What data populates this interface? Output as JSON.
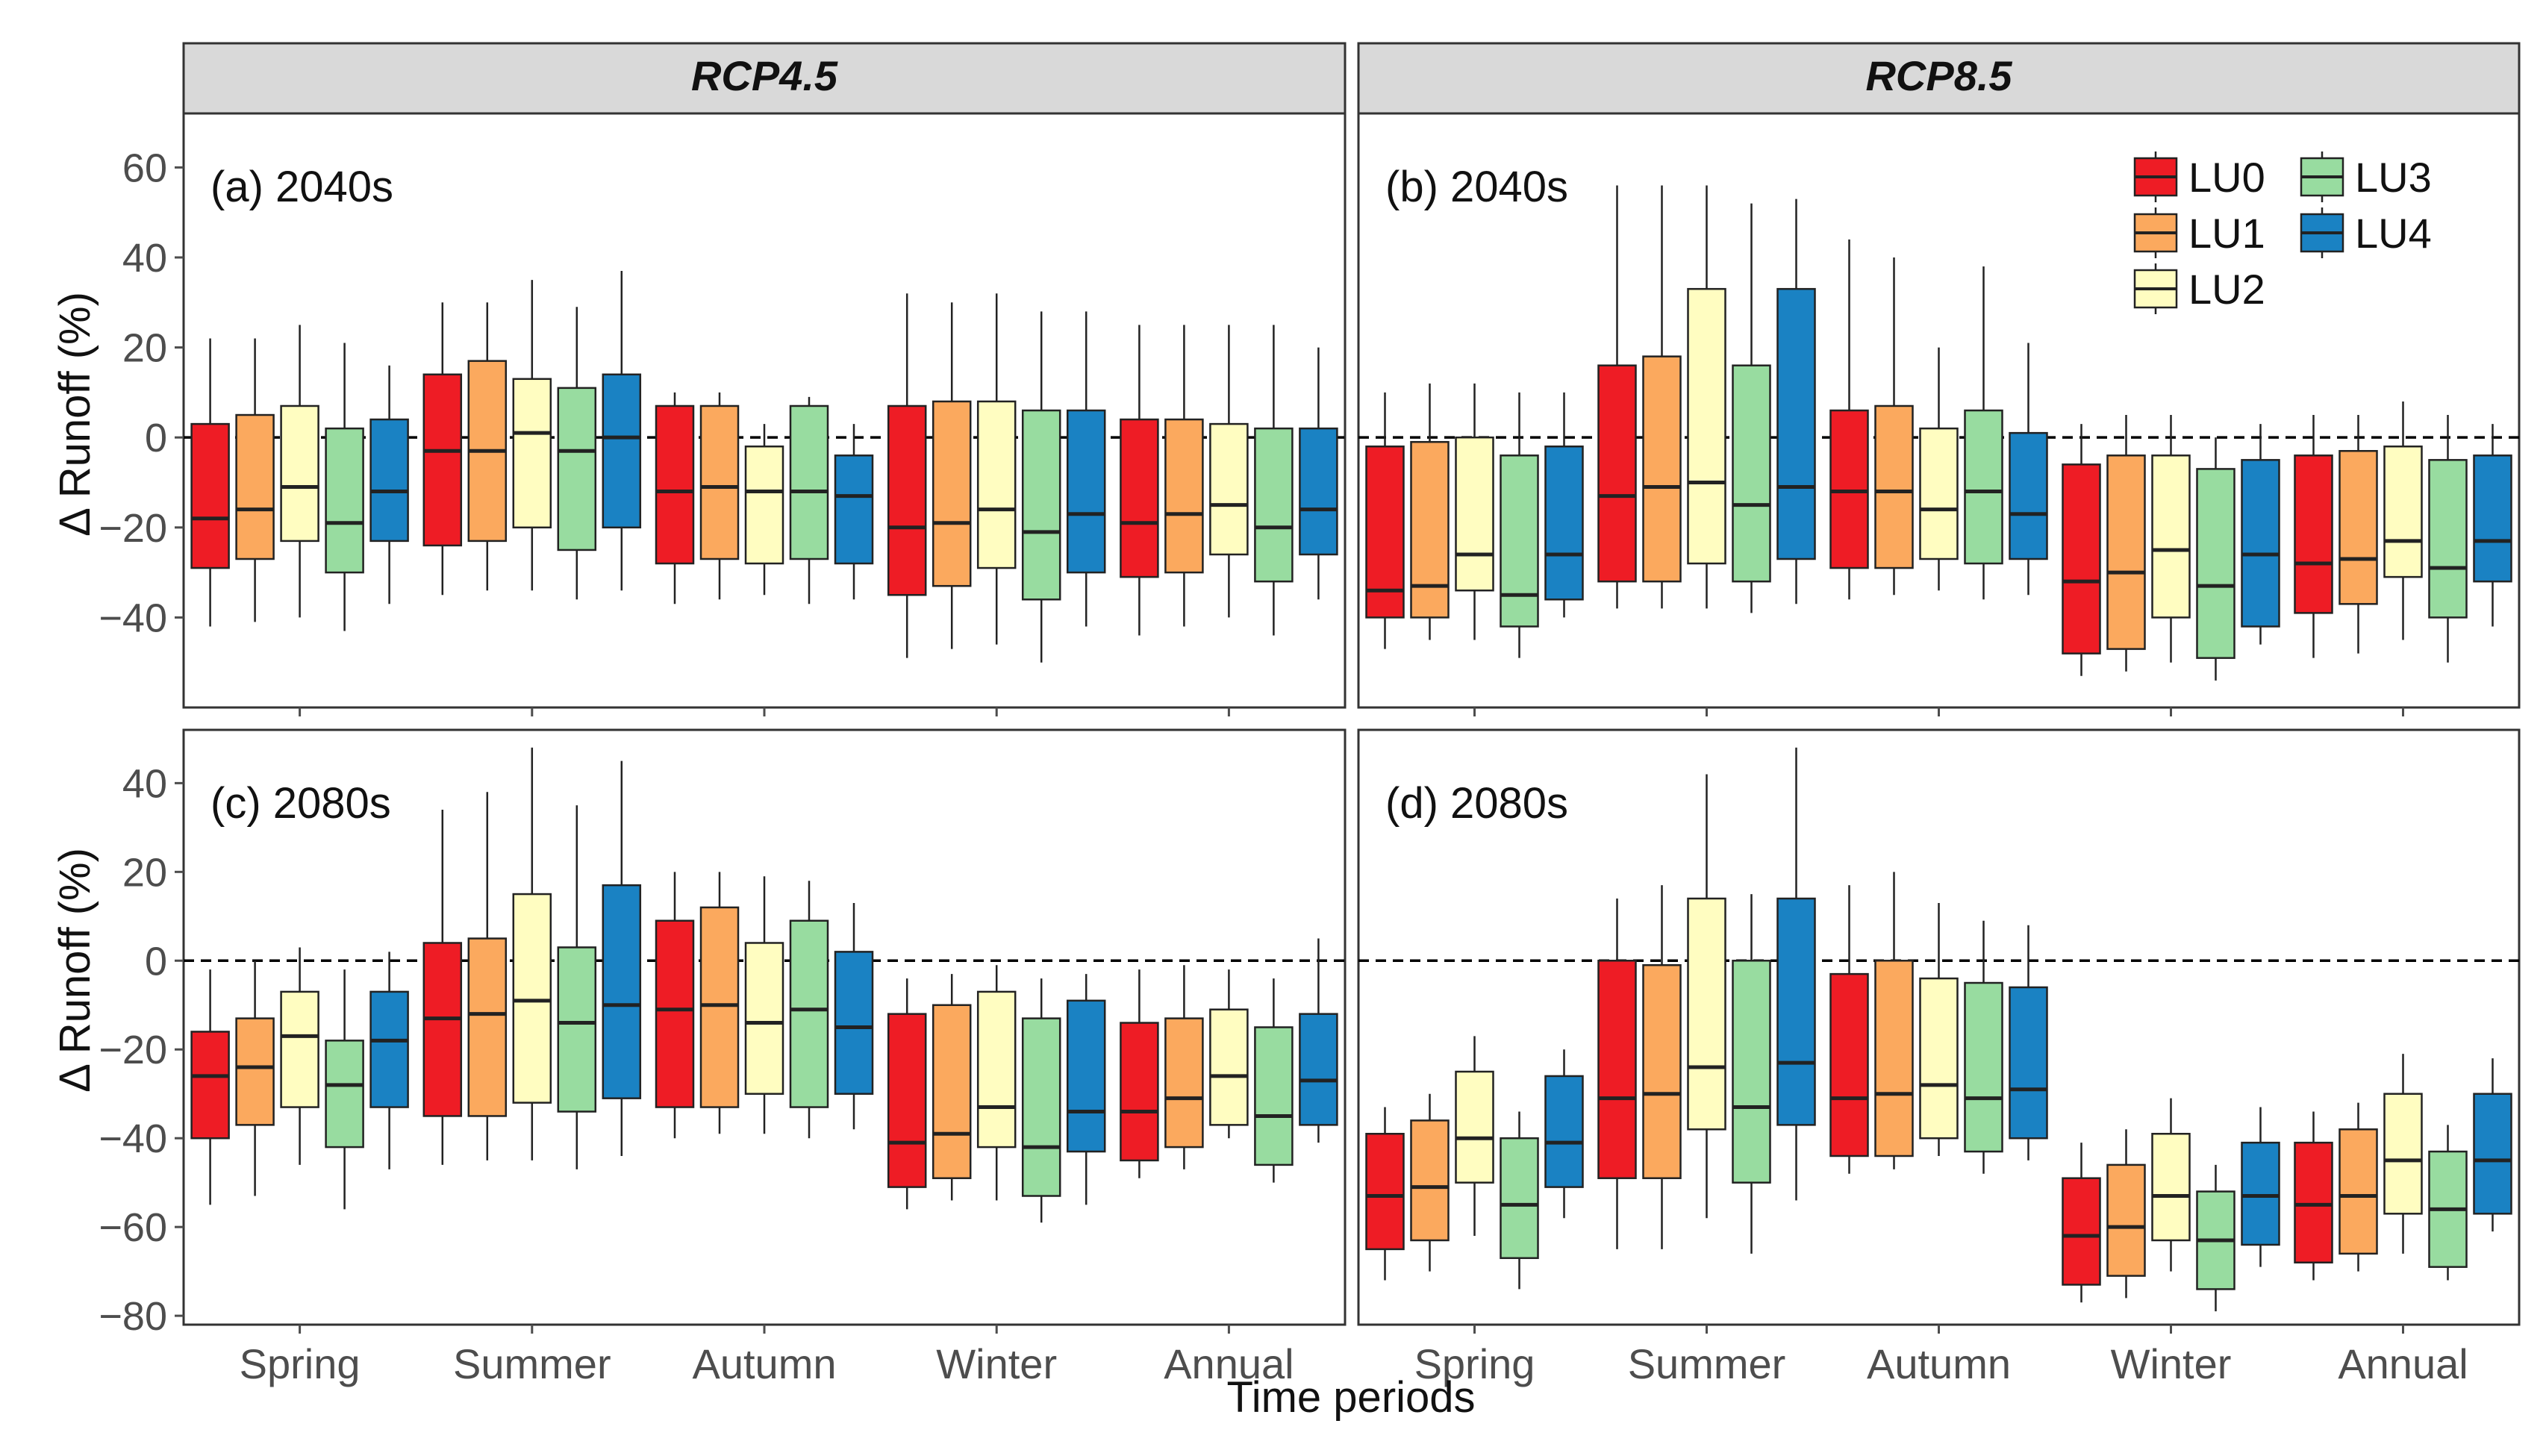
{
  "chart_data": {
    "type": "boxplot",
    "xlabel": "Time periods",
    "ylabel": "Δ Runoff (%)",
    "categories": [
      "Spring",
      "Summer",
      "Autumn",
      "Winter",
      "Annual"
    ],
    "columns": [
      "RCP4.5",
      "RCP8.5"
    ],
    "legend": {
      "position": "top-right",
      "entries": [
        "LU0",
        "LU1",
        "LU2",
        "LU3",
        "LU4"
      ]
    },
    "colors": {
      "LU0": "#ee1c25",
      "LU1": "#fba95e",
      "LU2": "#fffdc1",
      "LU3": "#98dca0",
      "LU4": "#1a82c3",
      "strip": "#d9d9d9",
      "text": "#111111",
      "axis": "#4d4d4d"
    },
    "rows": [
      {
        "ylim": [
          -60,
          72
        ],
        "yticks": [
          -40,
          -20,
          0,
          20,
          40,
          60
        ],
        "ytick_labels": [
          "−40",
          "−20",
          "0",
          "20",
          "40",
          "60"
        ]
      },
      {
        "ylim": [
          -82,
          52
        ],
        "yticks": [
          -80,
          -60,
          -40,
          -20,
          0,
          20,
          40
        ],
        "ytick_labels": [
          "−80",
          "−60",
          "−40",
          "−20",
          "0",
          "20",
          "40"
        ]
      }
    ],
    "panels": [
      {
        "title": "(a) 2040s",
        "scenario": "RCP4.5",
        "boxes": {
          "Spring": [
            [
              -42,
              -29,
              -18,
              3,
              22
            ],
            [
              -41,
              -27,
              -16,
              5,
              22
            ],
            [
              -40,
              -23,
              -11,
              7,
              25
            ],
            [
              -43,
              -30,
              -19,
              2,
              21
            ],
            [
              -37,
              -23,
              -12,
              4,
              16
            ]
          ],
          "Summer": [
            [
              -35,
              -24,
              -3,
              14,
              30
            ],
            [
              -34,
              -23,
              -3,
              17,
              30
            ],
            [
              -34,
              -20,
              1,
              13,
              35
            ],
            [
              -36,
              -25,
              -3,
              11,
              29
            ],
            [
              -34,
              -20,
              0,
              14,
              37
            ]
          ],
          "Autumn": [
            [
              -37,
              -28,
              -12,
              7,
              10
            ],
            [
              -36,
              -27,
              -11,
              7,
              10
            ],
            [
              -35,
              -28,
              -12,
              -2,
              3
            ],
            [
              -37,
              -27,
              -12,
              7,
              9
            ],
            [
              -36,
              -28,
              -13,
              -4,
              3
            ]
          ],
          "Winter": [
            [
              -49,
              -35,
              -20,
              7,
              32
            ],
            [
              -47,
              -33,
              -19,
              8,
              30
            ],
            [
              -46,
              -29,
              -16,
              8,
              32
            ],
            [
              -50,
              -36,
              -21,
              6,
              28
            ],
            [
              -42,
              -30,
              -17,
              6,
              28
            ]
          ],
          "Annual": [
            [
              -44,
              -31,
              -19,
              4,
              25
            ],
            [
              -42,
              -30,
              -17,
              4,
              25
            ],
            [
              -40,
              -26,
              -15,
              3,
              25
            ],
            [
              -44,
              -32,
              -20,
              2,
              25
            ],
            [
              -36,
              -26,
              -16,
              2,
              20
            ]
          ]
        }
      },
      {
        "title": "(b) 2040s",
        "scenario": "RCP8.5",
        "boxes": {
          "Spring": [
            [
              -47,
              -40,
              -34,
              -2,
              10
            ],
            [
              -45,
              -40,
              -33,
              -1,
              12
            ],
            [
              -45,
              -34,
              -26,
              0,
              12
            ],
            [
              -49,
              -42,
              -35,
              -4,
              10
            ],
            [
              -40,
              -36,
              -26,
              -2,
              10
            ]
          ],
          "Summer": [
            [
              -38,
              -32,
              -13,
              16,
              56
            ],
            [
              -38,
              -32,
              -11,
              18,
              56
            ],
            [
              -38,
              -28,
              -10,
              33,
              56
            ],
            [
              -39,
              -32,
              -15,
              16,
              52
            ],
            [
              -37,
              -27,
              -11,
              33,
              53
            ]
          ],
          "Autumn": [
            [
              -36,
              -29,
              -12,
              6,
              44
            ],
            [
              -35,
              -29,
              -12,
              7,
              40
            ],
            [
              -34,
              -27,
              -16,
              2,
              20
            ],
            [
              -36,
              -28,
              -12,
              6,
              38
            ],
            [
              -35,
              -27,
              -17,
              1,
              21
            ]
          ],
          "Winter": [
            [
              -53,
              -48,
              -32,
              -6,
              3
            ],
            [
              -52,
              -47,
              -30,
              -4,
              5
            ],
            [
              -50,
              -40,
              -25,
              -4,
              5
            ],
            [
              -54,
              -49,
              -33,
              -7,
              0
            ],
            [
              -46,
              -42,
              -26,
              -5,
              3
            ]
          ],
          "Annual": [
            [
              -49,
              -39,
              -28,
              -4,
              5
            ],
            [
              -48,
              -37,
              -27,
              -3,
              5
            ],
            [
              -45,
              -31,
              -23,
              -2,
              8
            ],
            [
              -50,
              -40,
              -29,
              -5,
              5
            ],
            [
              -42,
              -32,
              -23,
              -4,
              3
            ]
          ]
        }
      },
      {
        "title": "(c) 2080s",
        "scenario": "RCP4.5",
        "boxes": {
          "Spring": [
            [
              -55,
              -40,
              -26,
              -16,
              -2
            ],
            [
              -53,
              -37,
              -24,
              -13,
              0
            ],
            [
              -46,
              -33,
              -17,
              -7,
              3
            ],
            [
              -56,
              -42,
              -28,
              -18,
              -2
            ],
            [
              -47,
              -33,
              -18,
              -7,
              2
            ]
          ],
          "Summer": [
            [
              -46,
              -35,
              -13,
              4,
              34
            ],
            [
              -45,
              -35,
              -12,
              5,
              38
            ],
            [
              -45,
              -32,
              -9,
              15,
              48
            ],
            [
              -47,
              -34,
              -14,
              3,
              35
            ],
            [
              -44,
              -31,
              -10,
              17,
              45
            ]
          ],
          "Autumn": [
            [
              -40,
              -33,
              -11,
              9,
              20
            ],
            [
              -39,
              -33,
              -10,
              12,
              20
            ],
            [
              -39,
              -30,
              -14,
              4,
              19
            ],
            [
              -40,
              -33,
              -11,
              9,
              18
            ],
            [
              -38,
              -30,
              -15,
              2,
              13
            ]
          ],
          "Winter": [
            [
              -56,
              -51,
              -41,
              -12,
              -4
            ],
            [
              -54,
              -49,
              -39,
              -10,
              -3
            ],
            [
              -54,
              -42,
              -33,
              -7,
              -1
            ],
            [
              -59,
              -53,
              -42,
              -13,
              -4
            ],
            [
              -55,
              -43,
              -34,
              -9,
              -3
            ]
          ],
          "Annual": [
            [
              -49,
              -45,
              -34,
              -14,
              -2
            ],
            [
              -47,
              -42,
              -31,
              -13,
              -1
            ],
            [
              -40,
              -37,
              -26,
              -11,
              -2
            ],
            [
              -50,
              -46,
              -35,
              -15,
              -4
            ],
            [
              -41,
              -37,
              -27,
              -12,
              5
            ]
          ]
        }
      },
      {
        "title": "(d) 2080s",
        "scenario": "RCP8.5",
        "boxes": {
          "Spring": [
            [
              -72,
              -65,
              -53,
              -39,
              -33
            ],
            [
              -70,
              -63,
              -51,
              -36,
              -30
            ],
            [
              -62,
              -50,
              -40,
              -25,
              -17
            ],
            [
              -74,
              -67,
              -55,
              -40,
              -34
            ],
            [
              -58,
              -51,
              -41,
              -26,
              -20
            ]
          ],
          "Summer": [
            [
              -65,
              -49,
              -31,
              0,
              14
            ],
            [
              -65,
              -49,
              -30,
              -1,
              17
            ],
            [
              -58,
              -38,
              -24,
              14,
              42
            ],
            [
              -66,
              -50,
              -33,
              0,
              15
            ],
            [
              -54,
              -37,
              -23,
              14,
              48
            ]
          ],
          "Autumn": [
            [
              -48,
              -44,
              -31,
              -3,
              17
            ],
            [
              -47,
              -44,
              -30,
              0,
              20
            ],
            [
              -44,
              -40,
              -28,
              -4,
              13
            ],
            [
              -48,
              -43,
              -31,
              -5,
              9
            ],
            [
              -45,
              -40,
              -29,
              -6,
              8
            ]
          ],
          "Winter": [
            [
              -77,
              -73,
              -62,
              -49,
              -41
            ],
            [
              -76,
              -71,
              -60,
              -46,
              -38
            ],
            [
              -70,
              -63,
              -53,
              -39,
              -31
            ],
            [
              -79,
              -74,
              -63,
              -52,
              -46
            ],
            [
              -69,
              -64,
              -53,
              -41,
              -33
            ]
          ],
          "Annual": [
            [
              -72,
              -68,
              -55,
              -41,
              -34
            ],
            [
              -70,
              -66,
              -53,
              -38,
              -32
            ],
            [
              -66,
              -57,
              -45,
              -30,
              -21
            ],
            [
              -72,
              -69,
              -56,
              -43,
              -37
            ],
            [
              -61,
              -57,
              -45,
              -30,
              -22
            ]
          ]
        }
      }
    ]
  }
}
